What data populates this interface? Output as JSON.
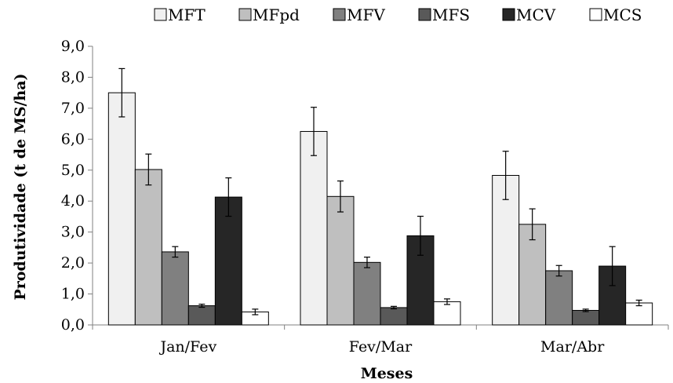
{
  "chart_data": {
    "type": "bar",
    "categories": [
      "Jan/Fev",
      "Fev/Mar",
      "Mar/Abr"
    ],
    "series": [
      {
        "name": "MFT",
        "values": [
          7.5,
          6.25,
          4.83
        ],
        "errors": [
          0.78,
          0.78,
          0.78
        ],
        "color": "#f0f0f0"
      },
      {
        "name": "MFpd",
        "values": [
          5.02,
          4.15,
          3.25
        ],
        "errors": [
          0.5,
          0.5,
          0.5
        ],
        "color": "#bfbfbf"
      },
      {
        "name": "MFV",
        "values": [
          2.36,
          2.02,
          1.75
        ],
        "errors": [
          0.17,
          0.17,
          0.17
        ],
        "color": "#808080"
      },
      {
        "name": "MFS",
        "values": [
          0.62,
          0.56,
          0.47
        ],
        "errors": [
          0.05,
          0.04,
          0.04
        ],
        "color": "#595959"
      },
      {
        "name": "MCV",
        "values": [
          4.13,
          2.88,
          1.9
        ],
        "errors": [
          0.62,
          0.63,
          0.63
        ],
        "color": "#262626"
      },
      {
        "name": "MCS",
        "values": [
          0.42,
          0.75,
          0.71
        ],
        "errors": [
          0.09,
          0.09,
          0.09
        ],
        "color": "#ffffff"
      }
    ],
    "xlabel": "Meses",
    "ylabel": "Produtividade (t de MS/ha)",
    "ylim": [
      0,
      9
    ],
    "yticks": [
      "0,0",
      "1,0",
      "2,0",
      "3,0",
      "4,0",
      "5,0",
      "6,0",
      "7,0",
      "8,0",
      "9,0"
    ],
    "grid": false,
    "legend": "top"
  }
}
